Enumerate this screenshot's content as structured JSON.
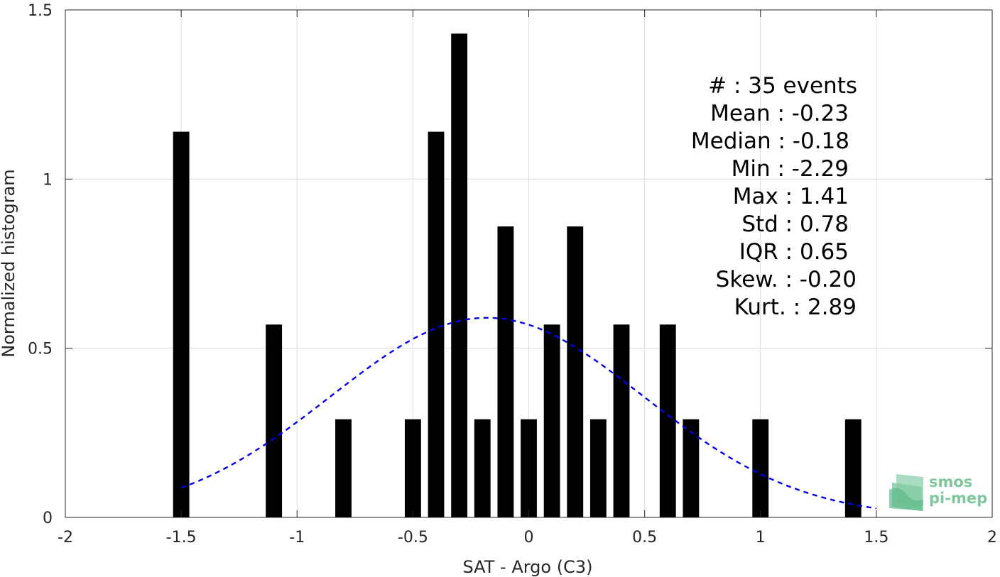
{
  "chart_data": {
    "type": "bar",
    "xlabel": "SAT - Argo (C3)",
    "ylabel": "Normalized histogram",
    "xlim": [
      -2,
      2
    ],
    "ylim": [
      0,
      1.5
    ],
    "xticks": [
      -2,
      -1.5,
      -1,
      -0.5,
      0,
      0.5,
      1,
      1.5,
      2
    ],
    "xtick_labels": [
      "-2",
      "-1.5",
      "-1",
      "-0.5",
      "0",
      "0.5",
      "1",
      "1.5",
      "2"
    ],
    "yticks": [
      0,
      0.5,
      1,
      1.5
    ],
    "ytick_labels": [
      "0",
      "0.5",
      "1",
      "1.5"
    ],
    "grid": true,
    "bar_width": 0.07,
    "bars": [
      {
        "x": -1.5,
        "y": 1.14
      },
      {
        "x": -1.1,
        "y": 0.57
      },
      {
        "x": -0.8,
        "y": 0.29
      },
      {
        "x": -0.5,
        "y": 0.29
      },
      {
        "x": -0.4,
        "y": 1.14
      },
      {
        "x": -0.3,
        "y": 1.43
      },
      {
        "x": -0.2,
        "y": 0.29
      },
      {
        "x": -0.1,
        "y": 0.86
      },
      {
        "x": 0.0,
        "y": 0.29
      },
      {
        "x": 0.1,
        "y": 0.57
      },
      {
        "x": 0.2,
        "y": 0.86
      },
      {
        "x": 0.3,
        "y": 0.29
      },
      {
        "x": 0.4,
        "y": 0.57
      },
      {
        "x": 0.6,
        "y": 0.57
      },
      {
        "x": 0.7,
        "y": 0.29
      },
      {
        "x": 1.0,
        "y": 0.29
      },
      {
        "x": 1.4,
        "y": 0.29
      }
    ],
    "fit_curve": {
      "style": "dashed",
      "color": "#0000ee",
      "mean": -0.18,
      "std": 0.675,
      "peak": 0.59,
      "x_range": [
        -1.5,
        1.5
      ]
    },
    "bar_color": "#000000",
    "stats_lines": [
      "#  : 35 events",
      "Mean : -0.23",
      "Median : -0.18",
      "Min : -2.29",
      "Max : 1.41",
      "Std : 0.78",
      "IQR : 0.65",
      "Skew. : -0.20",
      "Kurt. : 2.89"
    ]
  },
  "logo": {
    "line1": "smos",
    "line2": "pi-mep",
    "color": "#6fbf8f"
  }
}
